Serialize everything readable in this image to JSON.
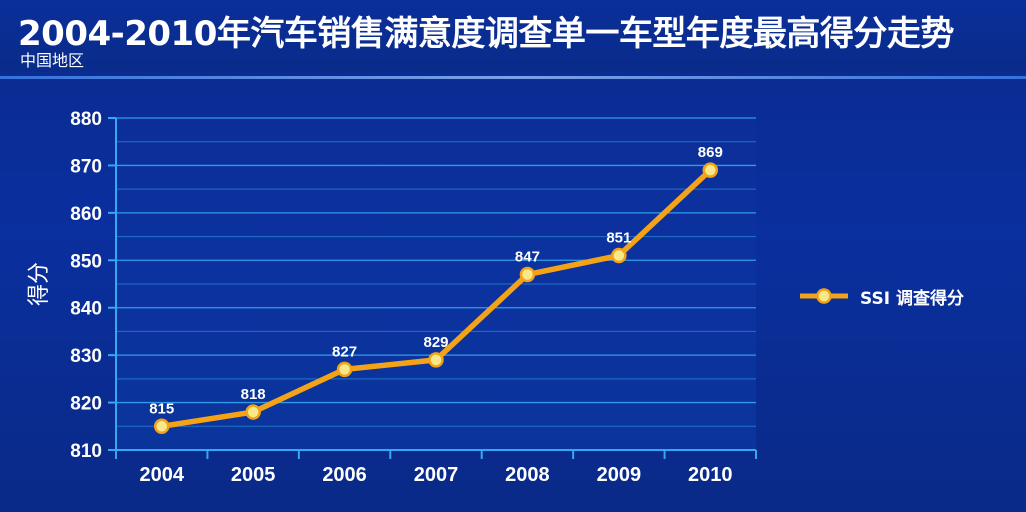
{
  "header": {
    "title": "2004-2010年汽车销售满意度调查单一车型年度最高得分走势",
    "subtitle": "中国地区"
  },
  "legend": {
    "label": "SSI 调查得分"
  },
  "colors": {
    "line": "#f5a316",
    "marker_fill": "#f7e98a",
    "grid": "#35a8f0",
    "text": "#ffffff"
  },
  "chart_data": {
    "type": "line",
    "title": "2004-2010年汽车销售满意度调查单一车型年度最高得分走势",
    "subtitle": "中国地区",
    "xlabel": "",
    "ylabel": "得分",
    "categories": [
      "2004",
      "2005",
      "2006",
      "2007",
      "2008",
      "2009",
      "2010"
    ],
    "series": [
      {
        "name": "SSI 调查得分",
        "values": [
          815,
          818,
          827,
          829,
          847,
          851,
          869
        ]
      }
    ],
    "yticks": [
      "810",
      "820",
      "830",
      "840",
      "850",
      "860",
      "870",
      "880"
    ],
    "ylim": [
      810,
      880
    ],
    "grid": true,
    "data_labels": true,
    "legend_position": "right"
  }
}
